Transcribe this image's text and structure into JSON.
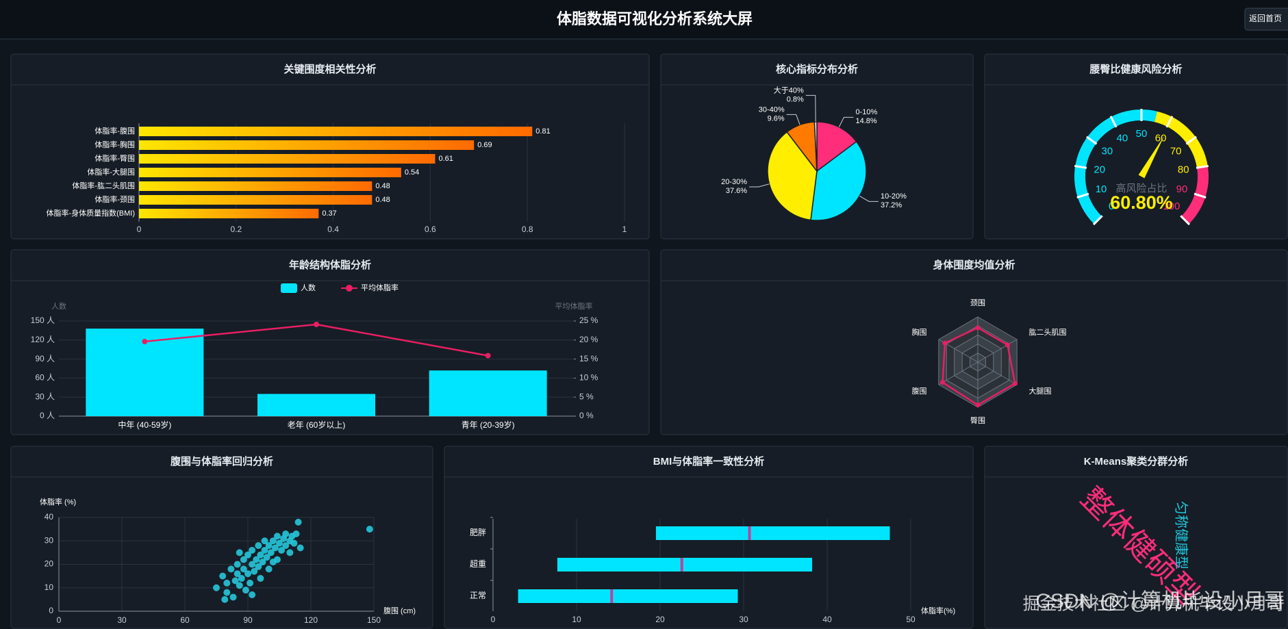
{
  "header": {
    "title": "体脂数据可视化分析系统大屏",
    "button": "返回首页"
  },
  "chart_data": [
    {
      "type": "hbar",
      "title": "关键围度相关性分析",
      "categories": [
        "体脂率-腹围",
        "体脂率-胸围",
        "体脂率-臀围",
        "体脂率-大腿围",
        "体脂率-肱二头肌围",
        "体脂率-颈围",
        "体脂率-身体质量指数(BMI)"
      ],
      "values": [
        0.81,
        0.69,
        0.61,
        0.54,
        0.48,
        0.48,
        0.37
      ],
      "colors": [
        "#ffe600",
        "#ff6a00"
      ],
      "xlim": [
        0,
        1
      ],
      "xticks": [
        0,
        0.2,
        0.4,
        0.6,
        0.8,
        1
      ],
      "grid": true
    },
    {
      "type": "pie",
      "title": "核心指标分布分析",
      "categories": [
        "0-10%",
        "10-20%",
        "20-30%",
        "30-40%",
        "大于40%"
      ],
      "values": [
        14.8,
        37.2,
        37.6,
        9.6,
        0.8
      ],
      "value_labels": [
        "14.8%",
        "37.2%",
        "37.6%",
        "9.6%",
        "0.8%"
      ],
      "colors": [
        "#ff2d7a",
        "#00e5ff",
        "#ffee00",
        "#ff7a00",
        "#e8e8e8"
      ]
    },
    {
      "type": "gauge",
      "title": "腰臀比健康风险分析",
      "label": "高风险占比",
      "value": 60.8,
      "value_label": "60.80%",
      "lim": [
        0,
        100
      ],
      "ticks": [
        0,
        10,
        20,
        30,
        40,
        50,
        60,
        70,
        80,
        90,
        100
      ],
      "bands": [
        {
          "to": 55,
          "color": "#00e5ff"
        },
        {
          "to": 80,
          "color": "#ffee00"
        },
        {
          "to": 100,
          "color": "#ff2d7a"
        }
      ]
    },
    {
      "type": "bar-line",
      "title": "年龄结构体脂分析",
      "categories": [
        "中年 (40-59岁)",
        "老年 (60岁以上)",
        "青年 (20-39岁)"
      ],
      "y_name": "人数",
      "y2_name": "平均体脂率",
      "series": [
        {
          "name": "人数",
          "color": "#00e5ff",
          "values": [
            138,
            35,
            72
          ]
        },
        {
          "name": "平均体脂率",
          "color": "#e91e63",
          "axis": "y2",
          "values": [
            19.6,
            24.1,
            15.9
          ]
        }
      ],
      "ylim": [
        0,
        150
      ],
      "yticks": [
        {
          "value": 0,
          "label": "0 人"
        },
        {
          "value": 30,
          "label": "30 人"
        },
        {
          "value": 60,
          "label": "60 人"
        },
        {
          "value": 90,
          "label": "90 人"
        },
        {
          "value": 120,
          "label": "120 人"
        },
        {
          "value": 150,
          "label": "150 人"
        }
      ],
      "y2lim": [
        0,
        25
      ],
      "y2ticks": [
        {
          "value": 0,
          "label": "0 %"
        },
        {
          "value": 5,
          "label": "5 %"
        },
        {
          "value": 10,
          "label": "10 %"
        },
        {
          "value": 15,
          "label": "15 %"
        },
        {
          "value": 20,
          "label": "20 %"
        },
        {
          "value": 25,
          "label": "25 %"
        }
      ]
    },
    {
      "type": "radar",
      "title": "身体围度均值分析",
      "indicators": [
        "颈围",
        "肱二头肌围",
        "大腿围",
        "臀围",
        "腹围",
        "胸围"
      ],
      "values": [
        0.76,
        0.76,
        0.95,
        0.95,
        0.9,
        0.84
      ],
      "rlim": [
        0,
        1
      ],
      "color": "#e91e63"
    },
    {
      "type": "scatter",
      "title": "腹围与体脂率回归分析",
      "x_label": "腹围 (cm)",
      "y_label": "体脂率 (%)",
      "x": [
        75,
        78,
        80,
        80,
        82,
        83,
        84,
        85,
        85,
        86,
        87,
        88,
        88,
        89,
        90,
        90,
        91,
        92,
        92,
        93,
        94,
        95,
        95,
        96,
        97,
        98,
        98,
        99,
        100,
        100,
        101,
        102,
        103,
        104,
        104,
        105,
        106,
        107,
        108,
        108,
        110,
        110,
        111,
        112,
        114,
        115,
        113,
        86,
        92,
        79,
        96,
        102,
        148
      ],
      "y": [
        10,
        15,
        8,
        12,
        18,
        6,
        13,
        20,
        16,
        11,
        14,
        22,
        18,
        9,
        16,
        24,
        12,
        20,
        26,
        17,
        22,
        19,
        28,
        24,
        21,
        26,
        30,
        23,
        28,
        18,
        25,
        30,
        27,
        32,
        22,
        29,
        26,
        31,
        28,
        33,
        30,
        25,
        32,
        29,
        38,
        27,
        33,
        25,
        7,
        5,
        14,
        21,
        35
      ],
      "color": "#26c6da",
      "xlim": [
        0,
        150
      ],
      "xticks": [
        0,
        30,
        60,
        90,
        120,
        150
      ],
      "ylim": [
        0,
        40
      ],
      "yticks": [
        0,
        10,
        20,
        30,
        40
      ],
      "grid": true
    },
    {
      "type": "range",
      "title": "BMI与体脂率一致性分析",
      "x_label": "体脂率(%)",
      "categories": [
        "肥胖",
        "超重",
        "正常"
      ],
      "low": [
        19.5,
        7.7,
        3
      ],
      "high": [
        47.5,
        38.2,
        29.3
      ],
      "median": [
        30.7,
        22.6,
        14.2
      ],
      "color": "#00e5ff",
      "median_color": "#c2409a",
      "xlim": [
        0,
        50
      ],
      "xticks": [
        0,
        10,
        20,
        30,
        40,
        50
      ],
      "grid": true
    },
    {
      "type": "wordcloud",
      "title": "K-Means聚类分群分析",
      "words": [
        {
          "text": "整体健硕型",
          "color": "#ff2d7a"
        },
        {
          "text": "匀称健康型",
          "color": "#1fc8db"
        }
      ]
    }
  ],
  "watermark": [
    "掘金技术社区 @计算机毕设小月哥",
    "CSDN @计算机毕设小月哥"
  ]
}
